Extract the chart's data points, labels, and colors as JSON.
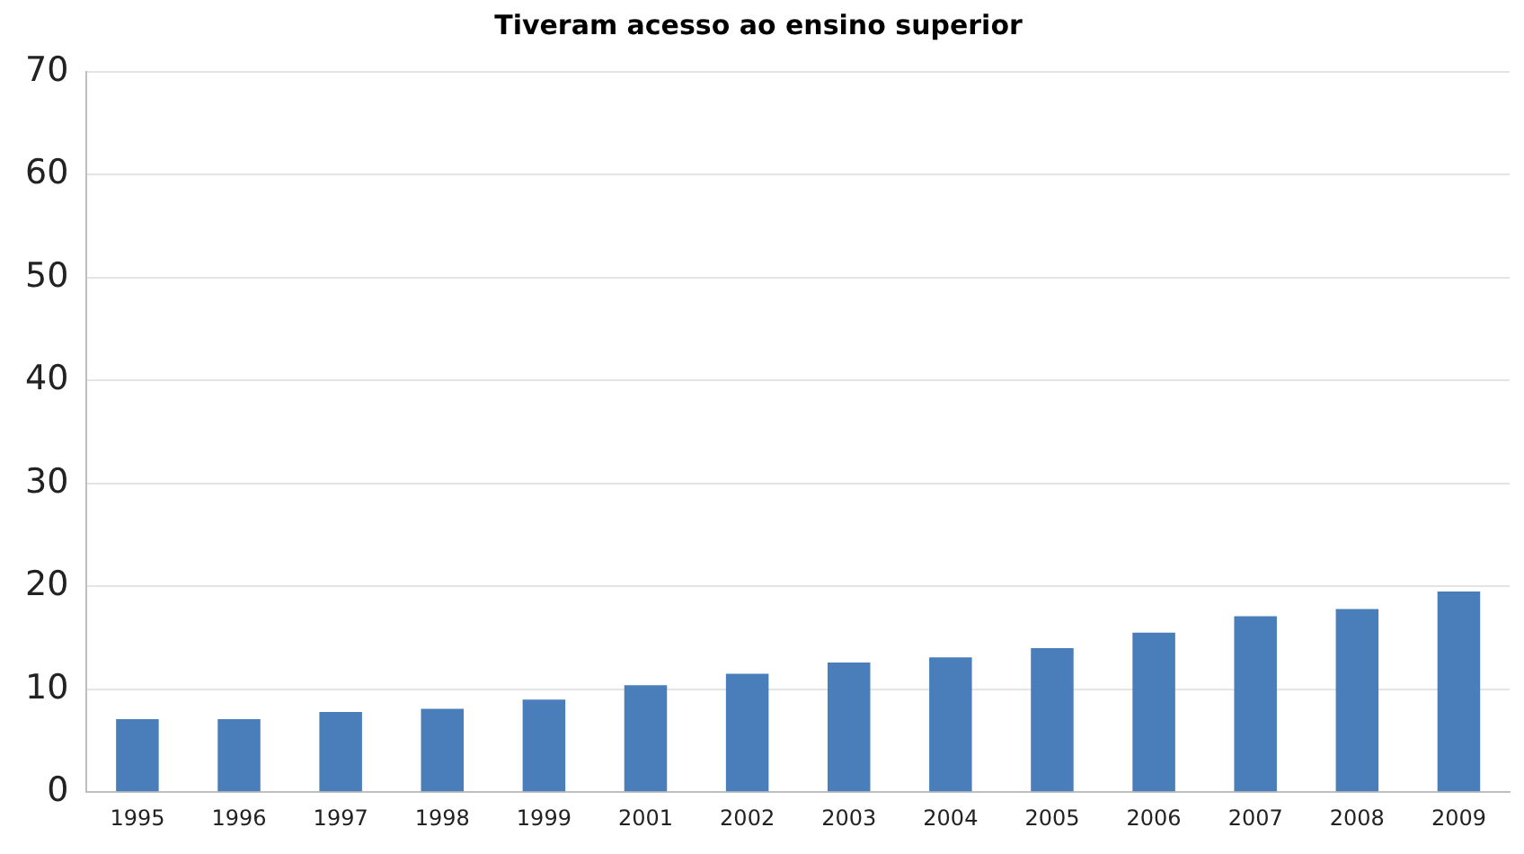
{
  "chart_data": {
    "type": "bar",
    "title": "Tiveram acesso ao ensino superior",
    "categories": [
      "1995",
      "1996",
      "1997",
      "1998",
      "1999",
      "2001",
      "2002",
      "2003",
      "2004",
      "2005",
      "2006",
      "2007",
      "2008",
      "2009"
    ],
    "values": [
      7.1,
      7.1,
      7.8,
      8.1,
      9.0,
      10.4,
      11.5,
      12.6,
      13.1,
      14.0,
      15.5,
      17.1,
      17.8,
      19.5
    ],
    "color": "#4a7ebb",
    "ylim": [
      0,
      70
    ],
    "yticks": [
      0,
      10,
      20,
      30,
      40,
      50,
      60,
      70
    ],
    "grid": "y",
    "legend": false
  }
}
